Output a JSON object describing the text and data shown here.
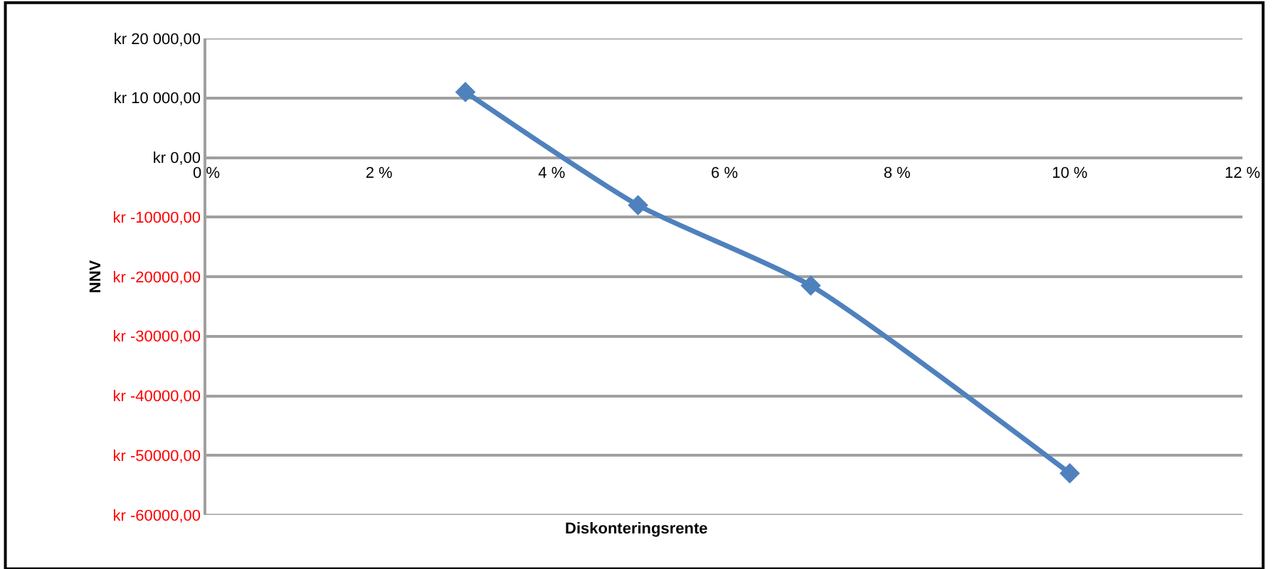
{
  "chart_data": {
    "type": "line",
    "xlabel": "Diskonteringsrente",
    "ylabel": "NNV",
    "x": [
      3,
      5,
      7,
      10
    ],
    "series": [
      {
        "color": "#4f81bd",
        "values": [
          11000,
          -8000,
          -21500,
          -53000
        ]
      }
    ],
    "xlim": [
      0,
      12
    ],
    "xticks": [
      {
        "value": 0,
        "label": "0 %"
      },
      {
        "value": 2,
        "label": "2 %"
      },
      {
        "value": 4,
        "label": "4 %"
      },
      {
        "value": 6,
        "label": "6 %"
      },
      {
        "value": 8,
        "label": "8 %"
      },
      {
        "value": 10,
        "label": "10 %"
      },
      {
        "value": 12,
        "label": "12 %"
      }
    ],
    "ylim": [
      -60000,
      20000
    ],
    "yticks": [
      {
        "value": 20000,
        "label": "kr 20 000,00"
      },
      {
        "value": 10000,
        "label": "kr 10 000,00"
      },
      {
        "value": 0,
        "label": "kr 0,00"
      },
      {
        "value": -10000,
        "label": "kr -10000,00"
      },
      {
        "value": -20000,
        "label": "kr -20000,00"
      },
      {
        "value": -30000,
        "label": "kr -30000,00"
      },
      {
        "value": -40000,
        "label": "kr -40000,00"
      },
      {
        "value": -50000,
        "label": "kr -50000,00"
      },
      {
        "value": -60000,
        "label": "kr -60000,00"
      }
    ],
    "grid": "y",
    "marker": "diamond",
    "line_style": "solid"
  }
}
